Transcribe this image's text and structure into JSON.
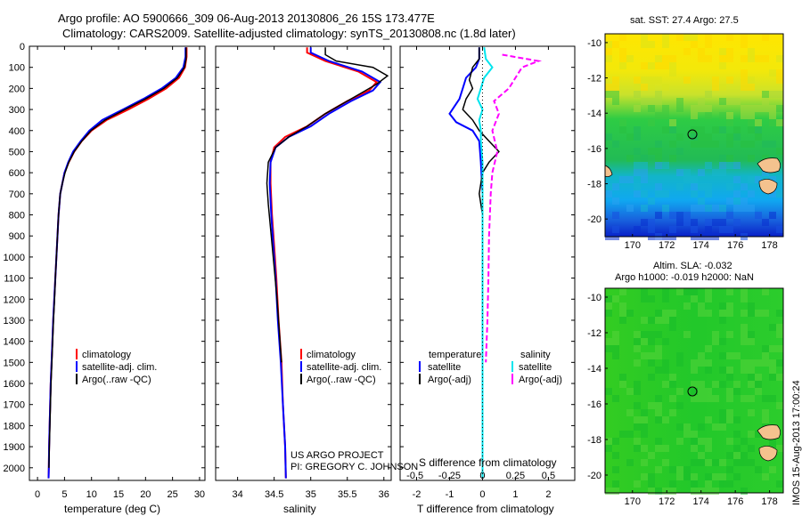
{
  "title": {
    "line1": "Argo profile: AO 5900666_309 06-Aug-2013 20130806_26 15S 173.477E",
    "line2": "Climatology: CARS2009. Satellite-adjusted climatology: synTS_20130808.nc (1.8d later)"
  },
  "side_text": {
    "sst": "sat. SST: 27.4 Argo: 27.5",
    "sla": "Altim. SLA: -0.032",
    "h": "Argo h1000: -0.019 h2000: NaN",
    "imos": "IMOS 15-Aug-2013 17:00:24"
  },
  "project": {
    "line1": "US ARGO PROJECT",
    "line2": "PI: GREGORY C. JOHNSON"
  },
  "colors": {
    "climatology": "#ff0000",
    "satellite": "#0000ff",
    "argo": "#000000",
    "sal_satellite": "#00e5ee",
    "sal_argo": "#ff00ff",
    "map_ocean_cool": "#0000cc",
    "map_ocean_mid": "#33cc33",
    "map_ocean_warm": "#ffee00",
    "land": "#f4c28e"
  },
  "chart_data": [
    {
      "type": "line",
      "name": "temperature",
      "xlabel": "temperature (deg C)",
      "xlim": [
        -1.5,
        31
      ],
      "xticks": [
        0,
        5,
        10,
        15,
        20,
        25,
        30
      ],
      "ylim": [
        0,
        2060
      ],
      "yticks": [
        0,
        100,
        200,
        300,
        400,
        500,
        600,
        700,
        800,
        900,
        1000,
        1100,
        1200,
        1300,
        1400,
        1500,
        1600,
        1700,
        1800,
        1900,
        2000
      ],
      "legend": [
        {
          "label": "climatology",
          "color": "#ff0000"
        },
        {
          "label": "satellite-adj. clim.",
          "color": "#0000ff"
        },
        {
          "label": "Argo(..raw -QC)",
          "color": "#000000"
        }
      ],
      "series": [
        {
          "name": "climatology",
          "color": "#ff0000",
          "points": [
            [
              27.6,
              5
            ],
            [
              27.6,
              50
            ],
            [
              27.3,
              100
            ],
            [
              26.2,
              150
            ],
            [
              23.8,
              200
            ],
            [
              20.5,
              250
            ],
            [
              16.8,
              300
            ],
            [
              12.8,
              350
            ],
            [
              10.0,
              400
            ],
            [
              8.2,
              450
            ],
            [
              6.8,
              500
            ],
            [
              5.8,
              550
            ],
            [
              5.0,
              600
            ],
            [
              4.6,
              650
            ],
            [
              4.2,
              700
            ],
            [
              3.9,
              800
            ],
            [
              3.7,
              900
            ],
            [
              3.5,
              1000
            ],
            [
              3.3,
              1100
            ],
            [
              3.1,
              1200
            ],
            [
              2.9,
              1300
            ],
            [
              2.75,
              1400
            ],
            [
              2.6,
              1500
            ],
            [
              2.45,
              1600
            ],
            [
              2.35,
              1700
            ],
            [
              2.25,
              1800
            ],
            [
              2.15,
              1900
            ],
            [
              2.1,
              2000
            ],
            [
              2.05,
              2050
            ]
          ]
        },
        {
          "name": "satellite-adj. clim.",
          "color": "#0000ff",
          "points": [
            [
              27.4,
              5
            ],
            [
              27.4,
              50
            ],
            [
              27.0,
              100
            ],
            [
              25.6,
              150
            ],
            [
              23.0,
              200
            ],
            [
              19.6,
              250
            ],
            [
              15.8,
              300
            ],
            [
              12.0,
              350
            ],
            [
              9.6,
              400
            ],
            [
              8.0,
              450
            ],
            [
              6.6,
              500
            ],
            [
              5.7,
              550
            ],
            [
              5.0,
              600
            ],
            [
              4.6,
              650
            ],
            [
              4.2,
              700
            ],
            [
              3.9,
              800
            ],
            [
              3.7,
              900
            ],
            [
              3.5,
              1000
            ],
            [
              3.3,
              1100
            ],
            [
              3.1,
              1200
            ],
            [
              2.9,
              1300
            ],
            [
              2.75,
              1400
            ],
            [
              2.6,
              1500
            ],
            [
              2.45,
              1600
            ],
            [
              2.35,
              1700
            ],
            [
              2.25,
              1800
            ],
            [
              2.15,
              1900
            ],
            [
              2.1,
              2000
            ],
            [
              2.05,
              2050
            ]
          ]
        },
        {
          "name": "Argo(..raw -QC)",
          "color": "#000000",
          "points": [
            [
              27.5,
              5
            ],
            [
              27.5,
              60
            ],
            [
              27.2,
              100
            ],
            [
              25.9,
              150
            ],
            [
              23.4,
              200
            ],
            [
              20.0,
              250
            ],
            [
              16.2,
              300
            ],
            [
              12.5,
              350
            ],
            [
              9.9,
              400
            ],
            [
              8.2,
              450
            ],
            [
              6.8,
              500
            ],
            [
              5.8,
              550
            ],
            [
              5.1,
              600
            ],
            [
              4.6,
              650
            ],
            [
              4.2,
              700
            ],
            [
              3.9,
              800
            ],
            [
              3.7,
              900
            ],
            [
              3.5,
              1000
            ],
            [
              3.3,
              1100
            ],
            [
              3.15,
              1200
            ],
            [
              2.95,
              1300
            ],
            [
              2.8,
              1400
            ],
            [
              2.65,
              1500
            ],
            [
              2.5,
              1600
            ],
            [
              2.4,
              1700
            ],
            [
              2.3,
              1800
            ],
            [
              2.2,
              1900
            ],
            [
              2.1,
              2000
            ]
          ]
        }
      ]
    },
    {
      "type": "line",
      "name": "salinity",
      "xlabel": "salinity",
      "xlim": [
        33.7,
        36.1
      ],
      "xticks": [
        34,
        34.5,
        35,
        35.5,
        36
      ],
      "ylim": [
        0,
        2060
      ],
      "legend": [
        {
          "label": "climatology",
          "color": "#ff0000"
        },
        {
          "label": "satellite-adj. clim.",
          "color": "#0000ff"
        },
        {
          "label": "Argo(..raw -QC)",
          "color": "#000000"
        }
      ],
      "series": [
        {
          "name": "climatology",
          "color": "#ff0000",
          "points": [
            [
              34.95,
              5
            ],
            [
              34.95,
              30
            ],
            [
              35.2,
              70
            ],
            [
              35.65,
              120
            ],
            [
              35.9,
              170
            ],
            [
              35.8,
              210
            ],
            [
              35.5,
              260
            ],
            [
              35.2,
              320
            ],
            [
              34.95,
              380
            ],
            [
              34.65,
              430
            ],
            [
              34.5,
              480
            ],
            [
              34.45,
              550
            ],
            [
              34.45,
              650
            ],
            [
              34.47,
              800
            ],
            [
              34.5,
              950
            ],
            [
              34.53,
              1100
            ],
            [
              34.56,
              1300
            ],
            [
              34.6,
              1500
            ],
            [
              34.62,
              1700
            ],
            [
              34.65,
              1900
            ],
            [
              34.66,
              2050
            ]
          ]
        },
        {
          "name": "satellite-adj. clim.",
          "color": "#0000ff",
          "points": [
            [
              35.0,
              5
            ],
            [
              35.0,
              30
            ],
            [
              35.25,
              70
            ],
            [
              35.7,
              120
            ],
            [
              35.95,
              170
            ],
            [
              35.85,
              210
            ],
            [
              35.55,
              260
            ],
            [
              35.25,
              320
            ],
            [
              35.0,
              380
            ],
            [
              34.7,
              430
            ],
            [
              34.52,
              480
            ],
            [
              34.45,
              550
            ],
            [
              34.44,
              650
            ],
            [
              34.46,
              800
            ],
            [
              34.49,
              950
            ],
            [
              34.52,
              1100
            ],
            [
              34.55,
              1300
            ],
            [
              34.59,
              1500
            ],
            [
              34.62,
              1700
            ],
            [
              34.65,
              1900
            ],
            [
              34.66,
              2050
            ]
          ]
        },
        {
          "name": "Argo(..raw -QC)",
          "color": "#000000",
          "points": [
            [
              35.2,
              5
            ],
            [
              35.2,
              40
            ],
            [
              35.35,
              70
            ],
            [
              35.85,
              100
            ],
            [
              36.05,
              140
            ],
            [
              35.9,
              180
            ],
            [
              35.7,
              220
            ],
            [
              35.5,
              260
            ],
            [
              35.2,
              320
            ],
            [
              34.95,
              380
            ],
            [
              34.7,
              430
            ],
            [
              34.52,
              480
            ],
            [
              34.42,
              550
            ],
            [
              34.4,
              650
            ],
            [
              34.42,
              750
            ],
            [
              34.46,
              900
            ],
            [
              34.5,
              1050
            ],
            [
              34.54,
              1200
            ],
            [
              34.57,
              1350
            ],
            [
              34.6,
              1500
            ]
          ]
        }
      ]
    },
    {
      "type": "line",
      "name": "difference",
      "xlabel": "T difference from climatology",
      "xlabel2": "S difference from climatology",
      "xlim": [
        -2.5,
        2.8
      ],
      "xticks": [
        -2,
        -1,
        0,
        1,
        2
      ],
      "sticks": [
        "-0.5",
        "-0.25",
        "0",
        "0.25",
        "0.5"
      ],
      "ylim": [
        0,
        2060
      ],
      "legend": {
        "temperature_head": "temperature",
        "salinity_head": "salinity",
        "t_sat": "satellite",
        "t_argo": "Argo(-adj)",
        "s_sat": "satellite",
        "s_argo": "Argo(-adj)"
      },
      "series": [
        {
          "name": "T satellite",
          "color": "#0000ff",
          "points": [
            [
              -0.1,
              5
            ],
            [
              -0.1,
              60
            ],
            [
              -0.2,
              100
            ],
            [
              -0.5,
              150
            ],
            [
              -0.6,
              200
            ],
            [
              -0.7,
              250
            ],
            [
              -1.0,
              320
            ],
            [
              -0.8,
              360
            ],
            [
              -0.3,
              400
            ],
            [
              -0.1,
              450
            ],
            [
              -0.05,
              550
            ],
            [
              0,
              700
            ],
            [
              0,
              900
            ],
            [
              0,
              2050
            ]
          ]
        },
        {
          "name": "T Argo(-adj)",
          "color": "#000000",
          "points": [
            [
              -0.1,
              5
            ],
            [
              -0.1,
              60
            ],
            [
              -0.3,
              100
            ],
            [
              -0.4,
              160
            ],
            [
              -0.3,
              200
            ],
            [
              -0.5,
              250
            ],
            [
              -0.6,
              300
            ],
            [
              -0.3,
              350
            ],
            [
              -0.1,
              400
            ],
            [
              0.2,
              450
            ],
            [
              0.5,
              500
            ],
            [
              0.2,
              550
            ],
            [
              0,
              600
            ],
            [
              -0.1,
              700
            ],
            [
              0,
              800
            ],
            [
              0,
              2000
            ]
          ]
        },
        {
          "name": "S satellite",
          "color": "#00e5ee",
          "points": [
            [
              0.05,
              5
            ],
            [
              0.1,
              60
            ],
            [
              0.3,
              100
            ],
            [
              0.05,
              150
            ],
            [
              -0.05,
              200
            ],
            [
              -0.15,
              250
            ],
            [
              0,
              300
            ],
            [
              -0.1,
              350
            ],
            [
              -0.05,
              400
            ],
            [
              -0.05,
              450
            ],
            [
              0,
              550
            ],
            [
              0,
              700
            ],
            [
              0,
              900
            ],
            [
              0,
              2050
            ]
          ]
        },
        {
          "name": "S Argo(-adj)",
          "color": "#ff00ff",
          "points": [
            [
              0.6,
              40
            ],
            [
              1.7,
              70
            ],
            [
              1.2,
              100
            ],
            [
              1.0,
              150
            ],
            [
              0.8,
              200
            ],
            [
              0.35,
              260
            ],
            [
              0.5,
              320
            ],
            [
              0.3,
              400
            ],
            [
              0.45,
              500
            ],
            [
              0.3,
              600
            ],
            [
              0.25,
              700
            ],
            [
              0.2,
              900
            ],
            [
              0.18,
              1100
            ],
            [
              0.15,
              1300
            ],
            [
              0.1,
              1500
            ]
          ]
        }
      ]
    },
    {
      "type": "heatmap",
      "name": "sst-map",
      "xticks": [
        170,
        172,
        174,
        176,
        178
      ],
      "yticks": [
        -10,
        -12,
        -14,
        -16,
        -18,
        -20
      ],
      "xlim": [
        168.4,
        178.8
      ],
      "ylim": [
        -21,
        -9.5
      ],
      "marker": [
        173.477,
        -15
      ]
    },
    {
      "type": "heatmap",
      "name": "sla-map",
      "xticks": [
        170,
        172,
        174,
        176,
        178
      ],
      "yticks": [
        -10,
        -12,
        -14,
        -16,
        -18,
        -20
      ],
      "xlim": [
        168.4,
        178.8
      ],
      "ylim": [
        -21,
        -9.5
      ],
      "marker": [
        173.477,
        -15
      ]
    }
  ]
}
